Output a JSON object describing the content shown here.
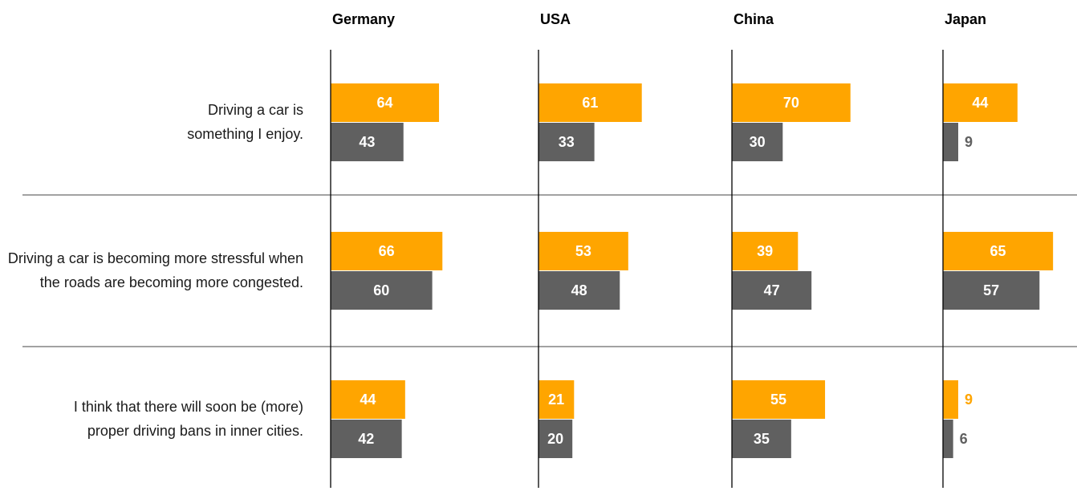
{
  "chart_data": {
    "type": "bar",
    "categories": [
      "Driving a car is something I enjoy.",
      "Driving a car is becoming more stressful when the roads are becoming more congested.",
      "I think that there will soon be (more) proper driving bans in inner cities."
    ],
    "xlim": [
      0,
      100
    ],
    "panels": [
      {
        "title": "Germany",
        "series": [
          {
            "color": "#ffa500",
            "values": [
              64,
              66,
              44
            ]
          },
          {
            "color": "#606060",
            "values": [
              43,
              60,
              42
            ]
          }
        ]
      },
      {
        "title": "USA",
        "series": [
          {
            "color": "#ffa500",
            "values": [
              61,
              53,
              21
            ]
          },
          {
            "color": "#606060",
            "values": [
              33,
              48,
              20
            ]
          }
        ]
      },
      {
        "title": "China",
        "series": [
          {
            "color": "#ffa500",
            "values": [
              70,
              39,
              55
            ]
          },
          {
            "color": "#606060",
            "values": [
              30,
              47,
              35
            ]
          }
        ]
      },
      {
        "title": "Japan",
        "series": [
          {
            "color": "#ffa500",
            "values": [
              44,
              65,
              9
            ]
          },
          {
            "color": "#606060",
            "values": [
              9,
              57,
              6
            ]
          }
        ]
      }
    ]
  }
}
